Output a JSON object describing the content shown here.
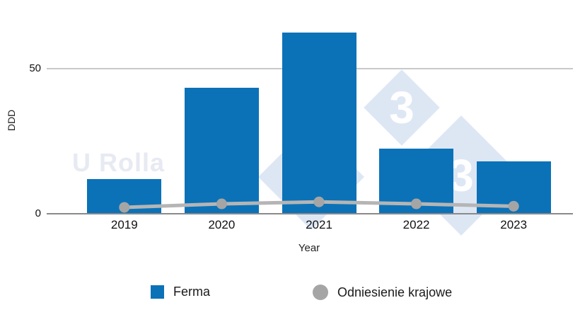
{
  "watermark": {
    "text": "U Rolla",
    "logo_digit": "3"
  },
  "colors": {
    "bar": "#0b72b8",
    "line": "#b5b5b5",
    "dot": "#a5a5a5",
    "gridline": "#c9c9c9",
    "axis": "#8a8a8a",
    "watermark_fill": "#dde7f4",
    "watermark_digit": "#ffffff",
    "watermark_text": "#e7eaf2"
  },
  "chart_data": {
    "type": "bar+line",
    "categories": [
      "2019",
      "2020",
      "2021",
      "2022",
      "2023"
    ],
    "series": [
      {
        "name": "Ferma",
        "type": "bar",
        "color": "#0b72b8",
        "values": [
          12,
          43.5,
          62.5,
          22.5,
          18
        ]
      },
      {
        "name": "Odniesienie krajowe",
        "type": "line",
        "color": "#b5b5b5",
        "values": [
          2.2,
          3.4,
          4.1,
          3.4,
          2.6
        ]
      }
    ],
    "title": "",
    "xlabel": "Year",
    "ylabel": "DDD",
    "y_ticks": [
      0,
      50
    ],
    "ylim": [
      0,
      65
    ],
    "grid": "horizontal",
    "legend_position": "bottom",
    "legend_markers": [
      "square",
      "circle"
    ]
  }
}
